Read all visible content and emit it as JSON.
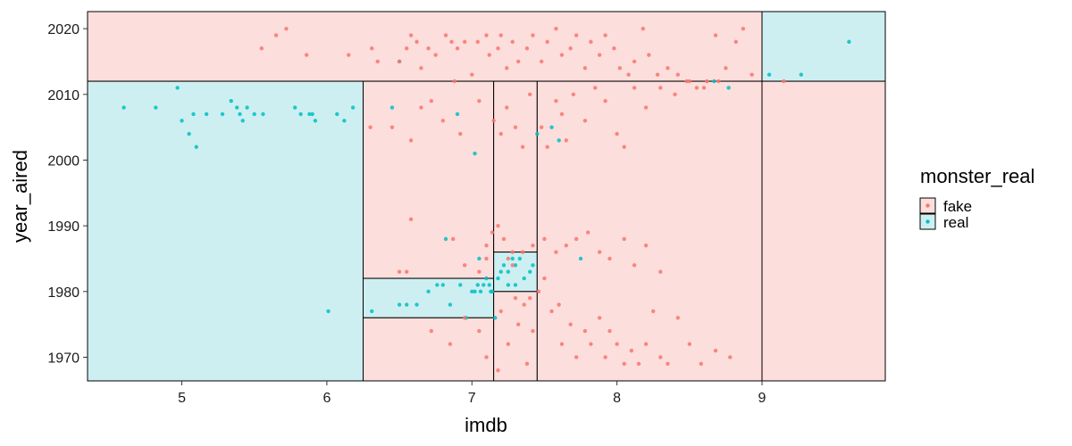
{
  "chart_data": {
    "type": "scatter",
    "title": "",
    "xlabel": "imdb",
    "ylabel": "year_aired",
    "xlim": [
      4.35,
      9.85
    ],
    "ylim": [
      1966.4,
      2022.6
    ],
    "xticks": [
      5,
      6,
      7,
      8,
      9
    ],
    "yticks": [
      1970,
      1980,
      1990,
      2000,
      2010,
      2020
    ],
    "grid": false,
    "legend": {
      "title": "monster_real",
      "placement": "right",
      "entries": [
        {
          "label": "fake",
          "color": "#F8766D",
          "fill": "#FCDEDC"
        },
        {
          "label": "real",
          "color": "#00BFC4",
          "fill": "#CEEFF1"
        }
      ]
    },
    "regions": [
      {
        "class": "fake",
        "x": [
          4.35,
          9.0
        ],
        "y": [
          2012,
          2022.6
        ]
      },
      {
        "class": "real",
        "x": [
          9.0,
          9.85
        ],
        "y": [
          2012,
          2022.6
        ]
      },
      {
        "class": "real",
        "x": [
          4.35,
          6.25
        ],
        "y": [
          1966.4,
          2012
        ]
      },
      {
        "class": "fake",
        "x": [
          6.25,
          7.15
        ],
        "y": [
          1982,
          2012
        ]
      },
      {
        "class": "real",
        "x": [
          6.25,
          7.15
        ],
        "y": [
          1976,
          1982
        ]
      },
      {
        "class": "fake",
        "x": [
          6.25,
          7.15
        ],
        "y": [
          1966.4,
          1976
        ]
      },
      {
        "class": "fake",
        "x": [
          7.15,
          7.45
        ],
        "y": [
          1986,
          2012
        ]
      },
      {
        "class": "real",
        "x": [
          7.15,
          7.45
        ],
        "y": [
          1980,
          1986
        ]
      },
      {
        "class": "fake",
        "x": [
          7.15,
          7.45
        ],
        "y": [
          1966.4,
          1980
        ]
      },
      {
        "class": "fake",
        "x": [
          7.45,
          9.0
        ],
        "y": [
          1966.4,
          2012
        ]
      },
      {
        "class": "fake",
        "x": [
          9.0,
          9.85
        ],
        "y": [
          1966.4,
          2012
        ]
      }
    ],
    "series": [
      {
        "name": "real",
        "color": "#00BFC4",
        "points": [
          [
            4.6,
            2008
          ],
          [
            4.82,
            2008
          ],
          [
            4.97,
            2011
          ],
          [
            5.0,
            2006
          ],
          [
            5.05,
            2004
          ],
          [
            5.08,
            2007
          ],
          [
            5.1,
            2002
          ],
          [
            5.17,
            2007
          ],
          [
            5.28,
            2007
          ],
          [
            5.34,
            2009
          ],
          [
            5.38,
            2008
          ],
          [
            5.4,
            2007
          ],
          [
            5.42,
            2006
          ],
          [
            5.45,
            2008
          ],
          [
            5.5,
            2007
          ],
          [
            5.56,
            2007
          ],
          [
            5.78,
            2008
          ],
          [
            5.82,
            2007
          ],
          [
            5.88,
            2007
          ],
          [
            5.9,
            2007
          ],
          [
            5.92,
            2006
          ],
          [
            6.07,
            2007
          ],
          [
            6.12,
            2006
          ],
          [
            6.18,
            2008
          ],
          [
            6.01,
            1977
          ],
          [
            6.45,
            2008
          ],
          [
            6.5,
            2015
          ],
          [
            6.31,
            1977
          ],
          [
            6.5,
            1978
          ],
          [
            6.55,
            1978
          ],
          [
            6.62,
            1978
          ],
          [
            6.7,
            1980
          ],
          [
            6.76,
            1981
          ],
          [
            6.8,
            1981
          ],
          [
            6.85,
            1978
          ],
          [
            6.92,
            1981
          ],
          [
            6.96,
            1976
          ],
          [
            7.0,
            1980
          ],
          [
            7.02,
            1980
          ],
          [
            7.04,
            1981
          ],
          [
            7.06,
            1980
          ],
          [
            7.08,
            1981
          ],
          [
            7.1,
            1982
          ],
          [
            7.12,
            1981
          ],
          [
            7.13,
            1980
          ],
          [
            7.14,
            1980
          ],
          [
            7.18,
            1982
          ],
          [
            7.2,
            1983
          ],
          [
            7.22,
            1984
          ],
          [
            7.25,
            1983
          ],
          [
            7.28,
            1985
          ],
          [
            7.3,
            1984
          ],
          [
            7.33,
            1985
          ],
          [
            7.36,
            1982
          ],
          [
            7.4,
            1983
          ],
          [
            7.42,
            1984
          ],
          [
            7.25,
            1981
          ],
          [
            7.3,
            1981
          ],
          [
            7.05,
            1985
          ],
          [
            7.16,
            1976
          ],
          [
            6.82,
            1988
          ],
          [
            7.02,
            2001
          ],
          [
            6.9,
            2007
          ],
          [
            7.45,
            2004
          ],
          [
            7.55,
            2005
          ],
          [
            7.6,
            2003
          ],
          [
            7.75,
            1985
          ],
          [
            8.67,
            2012
          ],
          [
            8.77,
            2011
          ],
          [
            9.05,
            2013
          ],
          [
            9.27,
            2013
          ],
          [
            9.6,
            2018
          ]
        ]
      },
      {
        "name": "fake",
        "color": "#F8766D",
        "points": [
          [
            5.55,
            2017
          ],
          [
            5.65,
            2019
          ],
          [
            5.72,
            2020
          ],
          [
            5.86,
            2016
          ],
          [
            6.15,
            2016
          ],
          [
            6.31,
            2017
          ],
          [
            6.35,
            2015
          ],
          [
            6.5,
            2015
          ],
          [
            6.55,
            2017
          ],
          [
            6.58,
            2019
          ],
          [
            6.62,
            2018
          ],
          [
            6.65,
            2014
          ],
          [
            6.7,
            2017
          ],
          [
            6.75,
            2016
          ],
          [
            6.82,
            2019
          ],
          [
            6.86,
            2018
          ],
          [
            6.9,
            2017
          ],
          [
            6.95,
            2018
          ],
          [
            7.0,
            2013
          ],
          [
            7.04,
            2018
          ],
          [
            7.1,
            2019
          ],
          [
            7.12,
            2016
          ],
          [
            7.18,
            2017
          ],
          [
            7.2,
            2019
          ],
          [
            7.24,
            2014
          ],
          [
            7.28,
            2018
          ],
          [
            7.32,
            2015
          ],
          [
            7.38,
            2017
          ],
          [
            7.42,
            2019
          ],
          [
            7.48,
            2015
          ],
          [
            7.52,
            2018
          ],
          [
            7.58,
            2020
          ],
          [
            7.62,
            2016
          ],
          [
            7.68,
            2017
          ],
          [
            7.72,
            2019
          ],
          [
            7.78,
            2014
          ],
          [
            7.82,
            2018
          ],
          [
            7.88,
            2016
          ],
          [
            7.92,
            2019
          ],
          [
            7.98,
            2017
          ],
          [
            8.02,
            2014
          ],
          [
            8.08,
            2013
          ],
          [
            8.12,
            2015
          ],
          [
            8.18,
            2020
          ],
          [
            8.22,
            2016
          ],
          [
            8.28,
            2013
          ],
          [
            8.35,
            2014
          ],
          [
            8.42,
            2013
          ],
          [
            8.48,
            2012
          ],
          [
            8.55,
            2011
          ],
          [
            8.62,
            2012
          ],
          [
            8.68,
            2019
          ],
          [
            8.75,
            2014
          ],
          [
            8.82,
            2018
          ],
          [
            8.87,
            2020
          ],
          [
            8.93,
            2013
          ],
          [
            9.15,
            2012
          ],
          [
            6.3,
            2005
          ],
          [
            6.45,
            2005
          ],
          [
            6.58,
            2003
          ],
          [
            6.65,
            2008
          ],
          [
            6.72,
            2009
          ],
          [
            6.8,
            2006
          ],
          [
            6.88,
            2012
          ],
          [
            6.92,
            2004
          ],
          [
            7.05,
            2009
          ],
          [
            7.15,
            2006
          ],
          [
            7.2,
            2004
          ],
          [
            7.24,
            2008
          ],
          [
            7.3,
            2005
          ],
          [
            7.35,
            2002
          ],
          [
            7.4,
            2010
          ],
          [
            7.48,
            2005
          ],
          [
            7.52,
            2002
          ],
          [
            7.58,
            2009
          ],
          [
            7.62,
            2007
          ],
          [
            7.65,
            2003
          ],
          [
            7.7,
            2010
          ],
          [
            7.78,
            2006
          ],
          [
            7.85,
            2011
          ],
          [
            7.92,
            2009
          ],
          [
            8.0,
            2004
          ],
          [
            8.05,
            2002
          ],
          [
            8.12,
            2011
          ],
          [
            8.2,
            2008
          ],
          [
            8.3,
            2011
          ],
          [
            8.4,
            2010
          ],
          [
            8.5,
            2012
          ],
          [
            8.6,
            2011
          ],
          [
            8.7,
            2012
          ],
          [
            6.58,
            1991
          ],
          [
            6.87,
            1988
          ],
          [
            7.1,
            1987
          ],
          [
            7.14,
            1989
          ],
          [
            7.18,
            1990
          ],
          [
            7.22,
            1988
          ],
          [
            7.28,
            1986
          ],
          [
            7.35,
            1986
          ],
          [
            7.42,
            1987
          ],
          [
            7.5,
            1988
          ],
          [
            7.58,
            1986
          ],
          [
            7.65,
            1987
          ],
          [
            7.72,
            1988
          ],
          [
            7.8,
            1989
          ],
          [
            7.88,
            1986
          ],
          [
            7.95,
            1985
          ],
          [
            8.05,
            1988
          ],
          [
            8.12,
            1984
          ],
          [
            8.2,
            1987
          ],
          [
            8.3,
            1983
          ],
          [
            6.5,
            1983
          ],
          [
            6.55,
            1983
          ],
          [
            6.95,
            1984
          ],
          [
            7.05,
            1983
          ],
          [
            7.1,
            1985
          ],
          [
            7.2,
            1977
          ],
          [
            7.3,
            1979
          ],
          [
            7.36,
            1978
          ],
          [
            7.42,
            1974
          ],
          [
            7.46,
            1980
          ],
          [
            7.5,
            1982
          ],
          [
            7.55,
            1977
          ],
          [
            7.6,
            1978
          ],
          [
            7.62,
            1972
          ],
          [
            7.68,
            1975
          ],
          [
            7.72,
            1970
          ],
          [
            7.78,
            1974
          ],
          [
            7.82,
            1972
          ],
          [
            7.88,
            1976
          ],
          [
            7.92,
            1970
          ],
          [
            7.95,
            1974
          ],
          [
            8.0,
            1972
          ],
          [
            8.05,
            1969
          ],
          [
            8.1,
            1971
          ],
          [
            8.15,
            1969
          ],
          [
            8.2,
            1972
          ],
          [
            8.25,
            1977
          ],
          [
            8.3,
            1970
          ],
          [
            8.35,
            1969
          ],
          [
            8.42,
            1976
          ],
          [
            8.5,
            1972
          ],
          [
            8.58,
            1969
          ],
          [
            8.68,
            1971
          ],
          [
            8.78,
            1970
          ],
          [
            6.72,
            1974
          ],
          [
            6.85,
            1972
          ],
          [
            6.95,
            1976
          ],
          [
            7.05,
            1974
          ],
          [
            7.1,
            1970
          ],
          [
            7.18,
            1968
          ],
          [
            7.25,
            1972
          ],
          [
            7.32,
            1975
          ],
          [
            7.38,
            1969
          ],
          [
            7.25,
            1985
          ],
          [
            7.28,
            1984
          ],
          [
            7.4,
            1979
          ]
        ]
      }
    ]
  }
}
